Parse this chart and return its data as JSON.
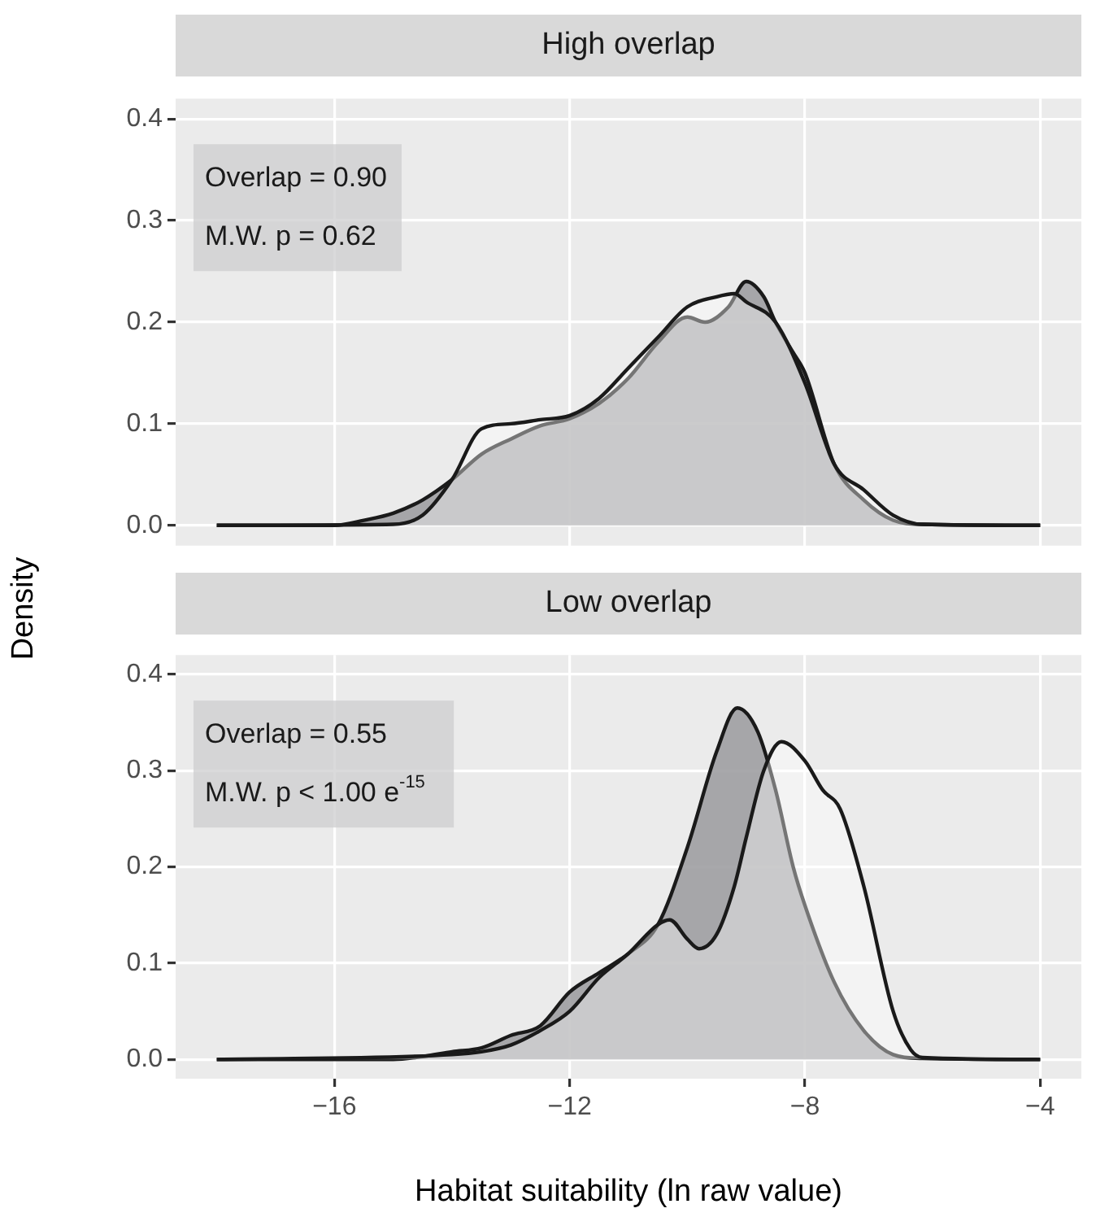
{
  "chart_data": [
    {
      "type": "area",
      "title": "High overlap",
      "ylabel": "Density",
      "annotations": [
        "Overlap = 0.90",
        "M.W. p = 0.62"
      ],
      "series": [
        {
          "color": "#9c9c9f",
          "x": [
            -18,
            -16,
            -15.5,
            -15,
            -14.5,
            -14,
            -13.5,
            -13,
            -12.5,
            -12,
            -11.5,
            -11,
            -10.5,
            -10,
            -9.7,
            -9.3,
            -9,
            -8.7,
            -8.5,
            -8.2,
            -8,
            -7.5,
            -7,
            -6.5,
            -6,
            -4
          ],
          "values": [
            0,
            0,
            0.005,
            0.012,
            0.025,
            0.045,
            0.07,
            0.085,
            0.098,
            0.105,
            0.12,
            0.145,
            0.18,
            0.205,
            0.2,
            0.215,
            0.24,
            0.225,
            0.2,
            0.17,
            0.15,
            0.06,
            0.025,
            0.005,
            0.001,
            0
          ]
        },
        {
          "color": "#ffffff",
          "x": [
            -18,
            -15,
            -14.5,
            -14,
            -13.5,
            -13,
            -12.5,
            -12,
            -11.5,
            -11,
            -10.5,
            -10,
            -9.5,
            -9.2,
            -9,
            -8.5,
            -8,
            -7.5,
            -7,
            -6.5,
            -6,
            -4
          ],
          "values": [
            0,
            0.001,
            0.01,
            0.045,
            0.095,
            0.1,
            0.104,
            0.108,
            0.125,
            0.155,
            0.185,
            0.215,
            0.225,
            0.228,
            0.22,
            0.2,
            0.14,
            0.06,
            0.035,
            0.01,
            0.001,
            0
          ]
        }
      ],
      "xlim": [
        -18.7,
        -3.3
      ],
      "xticks": [
        -16,
        -12,
        -8,
        -4
      ],
      "ylim": [
        -0.02,
        0.42
      ],
      "yticks": [
        {
          "value": 0,
          "label": "0.0"
        },
        0.1,
        0.2,
        0.3,
        0.4
      ],
      "grid": true,
      "tick_labels": "y"
    },
    {
      "type": "area",
      "title": "Low overlap",
      "xlabel": "Habitat suitability (ln raw value)",
      "annotations": [
        "Overlap = 0.55",
        "M.W. p < 1.00 e$^{-15}$"
      ],
      "series": [
        {
          "color": "#9c9c9f",
          "x": [
            -18,
            -15,
            -14.5,
            -14,
            -13.5,
            -13,
            -12.5,
            -12,
            -11.5,
            -11,
            -10.5,
            -10,
            -9.5,
            -9.15,
            -8.8,
            -8.5,
            -8.2,
            -8,
            -7.5,
            -7,
            -6.5,
            -6,
            -4
          ],
          "values": [
            0,
            0,
            0.003,
            0.008,
            0.012,
            0.025,
            0.035,
            0.07,
            0.09,
            0.11,
            0.14,
            0.22,
            0.32,
            0.365,
            0.34,
            0.28,
            0.2,
            0.16,
            0.08,
            0.03,
            0.005,
            0.001,
            0
          ]
        },
        {
          "color": "#ffffff",
          "x": [
            -18,
            -14,
            -13.5,
            -13,
            -12.5,
            -12,
            -11.5,
            -11,
            -10.5,
            -10.3,
            -10,
            -9.8,
            -9.5,
            -9.2,
            -9,
            -8.7,
            -8.4,
            -8,
            -7.7,
            -7.4,
            -7,
            -6.5,
            -6.2,
            -6,
            -4
          ],
          "values": [
            0,
            0.005,
            0.008,
            0.015,
            0.03,
            0.05,
            0.085,
            0.11,
            0.14,
            0.145,
            0.125,
            0.115,
            0.13,
            0.18,
            0.23,
            0.3,
            0.33,
            0.31,
            0.28,
            0.26,
            0.18,
            0.05,
            0.01,
            0.002,
            0
          ]
        }
      ],
      "xlim": [
        -18.7,
        -3.3
      ],
      "xticks": [
        -16,
        -12,
        -8,
        -4
      ],
      "ylim": [
        -0.02,
        0.42
      ],
      "yticks": [
        {
          "value": 0,
          "label": "0.0"
        },
        0.1,
        0.2,
        0.3,
        0.4
      ],
      "grid": true
    }
  ]
}
